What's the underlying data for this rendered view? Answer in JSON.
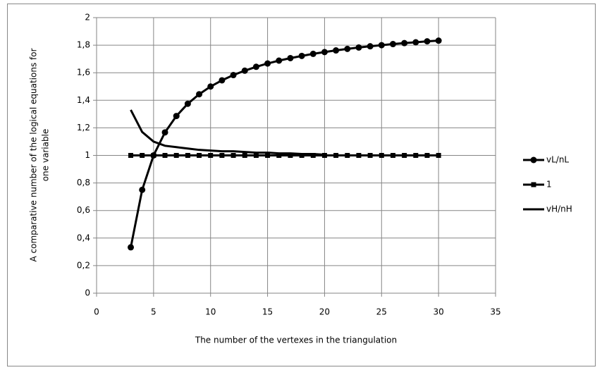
{
  "chart_data": {
    "type": "line",
    "x_label": "The number of the vertexes in the triangulation",
    "y_label": [
      "A comparative number of the logical equations for",
      "one variable"
    ],
    "x": [
      3,
      4,
      5,
      6,
      7,
      8,
      9,
      10,
      11,
      12,
      13,
      14,
      15,
      16,
      17,
      18,
      19,
      20,
      21,
      22,
      23,
      24,
      25,
      26,
      27,
      28,
      29,
      30
    ],
    "series": [
      {
        "name": "vL/nL",
        "color": "#000000",
        "marker": "circle",
        "values": [
          0.333,
          0.75,
          1,
          1.167,
          1.286,
          1.375,
          1.444,
          1.5,
          1.545,
          1.583,
          1.615,
          1.643,
          1.667,
          1.688,
          1.706,
          1.722,
          1.737,
          1.75,
          1.762,
          1.773,
          1.783,
          1.792,
          1.8,
          1.808,
          1.815,
          1.821,
          1.828,
          1.833
        ]
      },
      {
        "name": "1",
        "color": "#000000",
        "marker": "square",
        "values": [
          1,
          1,
          1,
          1,
          1,
          1,
          1,
          1,
          1,
          1,
          1,
          1,
          1,
          1,
          1,
          1,
          1,
          1,
          1,
          1,
          1,
          1,
          1,
          1,
          1,
          1,
          1,
          1
        ]
      },
      {
        "name": "vH/nH",
        "color": "#000000",
        "marker": "none",
        "values": [
          1.33,
          1.17,
          1.1,
          1.07,
          1.06,
          1.05,
          1.04,
          1.035,
          1.03,
          1.03,
          1.025,
          1.02,
          1.02,
          1.015,
          1.015,
          1.01,
          1.01,
          1.005,
          null,
          null,
          null,
          null,
          null,
          null,
          null,
          null,
          null,
          null
        ]
      }
    ],
    "xlim": [
      0,
      35
    ],
    "xticks": [
      0,
      5,
      10,
      15,
      20,
      25,
      30,
      35
    ],
    "ylim": [
      0,
      2
    ],
    "yticks": [
      0,
      {
        "value": 0.2,
        "label": "0,2"
      },
      {
        "value": 0.4,
        "label": "0,4"
      },
      {
        "value": 0.6,
        "label": "0,6"
      },
      {
        "value": 0.8,
        "label": "0,8"
      },
      1,
      {
        "value": 1.2,
        "label": "1,2"
      },
      {
        "value": 1.4,
        "label": "1,4"
      },
      {
        "value": 1.6,
        "label": "1,6"
      },
      {
        "value": 1.8,
        "label": "1,8"
      },
      2
    ],
    "grid": true,
    "legend": "right"
  }
}
